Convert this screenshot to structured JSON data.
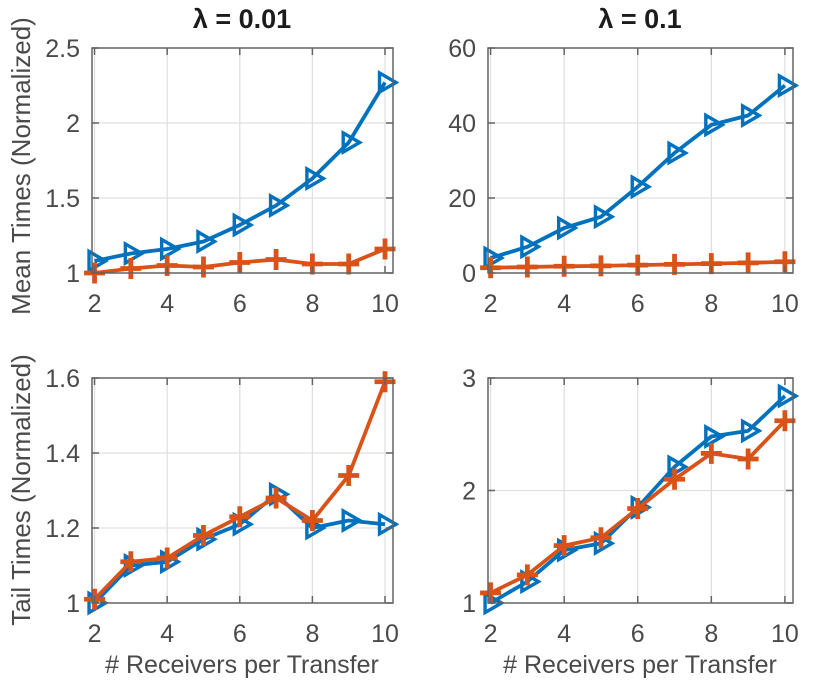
{
  "styles": {
    "background": "#ffffff",
    "series_blue": "#0072BD",
    "series_orange": "#D95319",
    "grid_color": "#e0e0e0",
    "frame_color": "#636363",
    "tick_label_color": "#4a4a4a",
    "axis_label_color": "#4a4a4a",
    "title_color": "#1c1c1c"
  },
  "chart_data": [
    {
      "id": "mean-lambda-001",
      "type": "line",
      "title": "λ = 0.01",
      "ylabel": "Mean Times (Normalized)",
      "xlabel": "",
      "x": [
        2,
        3,
        4,
        5,
        6,
        7,
        8,
        9,
        10
      ],
      "xlim": [
        1.93,
        10.22
      ],
      "ylim": [
        1,
        2.5
      ],
      "xticks": [
        2,
        4,
        6,
        8,
        10
      ],
      "xtick_labels": [
        "2",
        "4",
        "6",
        "8",
        "10"
      ],
      "yticks": [
        1,
        1.5,
        2,
        2.5
      ],
      "ytick_labels": [
        "1",
        "1.5",
        "2",
        "2.5"
      ],
      "grid": true,
      "legend": "none",
      "series": [
        {
          "name": "blue-triangle-series",
          "marker": "triangle-right",
          "color": "#0072BD",
          "values": [
            1.08,
            1.13,
            1.16,
            1.21,
            1.32,
            1.45,
            1.63,
            1.87,
            2.27
          ]
        },
        {
          "name": "orange-plus-series",
          "marker": "plus",
          "color": "#D95319",
          "values": [
            1.0,
            1.03,
            1.05,
            1.04,
            1.07,
            1.09,
            1.06,
            1.06,
            1.16
          ]
        }
      ]
    },
    {
      "id": "mean-lambda-01",
      "type": "line",
      "title": "λ = 0.1",
      "ylabel": "",
      "xlabel": "",
      "x": [
        2,
        3,
        4,
        5,
        6,
        7,
        8,
        9,
        10
      ],
      "xlim": [
        1.93,
        10.22
      ],
      "ylim": [
        0,
        60
      ],
      "xticks": [
        2,
        4,
        6,
        8,
        10
      ],
      "xtick_labels": [
        "2",
        "4",
        "6",
        "8",
        "10"
      ],
      "yticks": [
        0,
        20,
        40,
        60
      ],
      "ytick_labels": [
        "0",
        "20",
        "40",
        "60"
      ],
      "grid": true,
      "legend": "none",
      "series": [
        {
          "name": "blue-triangle-series",
          "marker": "triangle-right",
          "color": "#0072BD",
          "values": [
            4,
            7,
            12,
            15,
            23,
            32,
            39.5,
            42,
            50
          ]
        },
        {
          "name": "orange-plus-series",
          "marker": "plus",
          "color": "#D95319",
          "values": [
            1.4,
            1.6,
            1.8,
            1.9,
            2.1,
            2.3,
            2.5,
            2.7,
            3.0
          ]
        }
      ]
    },
    {
      "id": "tail-lambda-001",
      "type": "line",
      "title": "",
      "ylabel": "Tail Times (Normalized)",
      "xlabel": "# Receivers per Transfer",
      "x": [
        2,
        3,
        4,
        5,
        6,
        7,
        8,
        9,
        10
      ],
      "xlim": [
        1.93,
        10.22
      ],
      "ylim": [
        1,
        1.6
      ],
      "xticks": [
        2,
        4,
        6,
        8,
        10
      ],
      "xtick_labels": [
        "2",
        "4",
        "6",
        "8",
        "10"
      ],
      "yticks": [
        1,
        1.2,
        1.4,
        1.6
      ],
      "ytick_labels": [
        "1",
        "1.2",
        "1.4",
        "1.6"
      ],
      "grid": true,
      "legend": "none",
      "series": [
        {
          "name": "blue-triangle-series",
          "marker": "triangle-right",
          "color": "#0072BD",
          "values": [
            1.0,
            1.1,
            1.11,
            1.17,
            1.21,
            1.29,
            1.2,
            1.22,
            1.21
          ]
        },
        {
          "name": "orange-plus-series",
          "marker": "plus",
          "color": "#D95319",
          "values": [
            1.01,
            1.11,
            1.12,
            1.18,
            1.23,
            1.28,
            1.22,
            1.34,
            1.59
          ]
        }
      ]
    },
    {
      "id": "tail-lambda-01",
      "type": "line",
      "title": "",
      "ylabel": "",
      "xlabel": "# Receivers per Transfer",
      "x": [
        2,
        3,
        4,
        5,
        6,
        7,
        8,
        9,
        10
      ],
      "xlim": [
        1.93,
        10.22
      ],
      "ylim": [
        1,
        3
      ],
      "xticks": [
        2,
        4,
        6,
        8,
        10
      ],
      "xtick_labels": [
        "2",
        "4",
        "6",
        "8",
        "10"
      ],
      "yticks": [
        1,
        2,
        3
      ],
      "ytick_labels": [
        "1",
        "2",
        "3"
      ],
      "grid": true,
      "legend": "none",
      "series": [
        {
          "name": "blue-triangle-series",
          "marker": "triangle-right",
          "color": "#0072BD",
          "values": [
            1.0,
            1.19,
            1.47,
            1.53,
            1.85,
            2.21,
            2.48,
            2.53,
            2.84
          ]
        },
        {
          "name": "orange-plus-series",
          "marker": "plus",
          "color": "#D95319",
          "values": [
            1.09,
            1.25,
            1.51,
            1.58,
            1.84,
            2.1,
            2.33,
            2.28,
            2.62
          ]
        }
      ]
    }
  ]
}
